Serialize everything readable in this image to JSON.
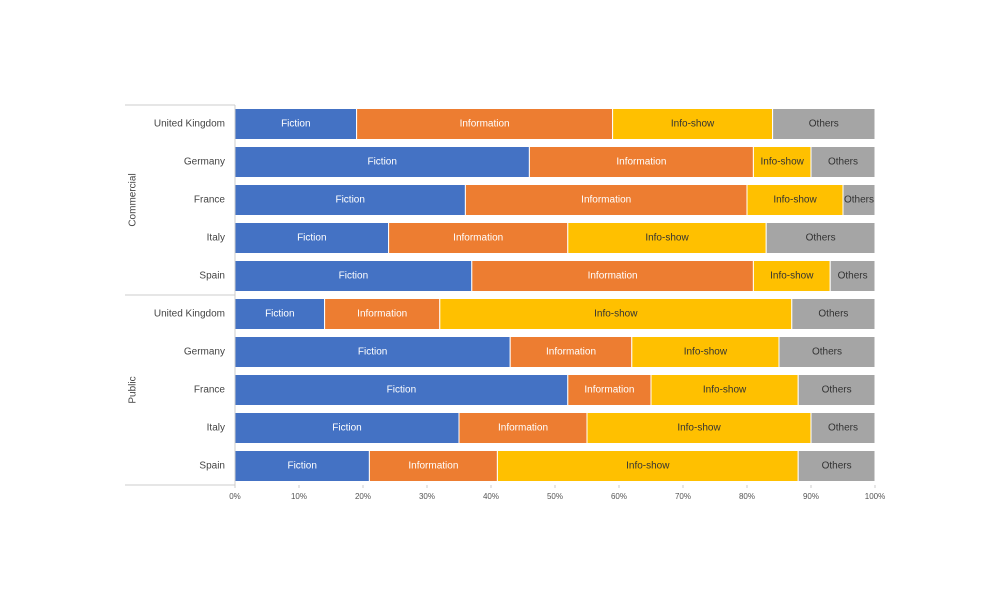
{
  "chart_data": {
    "type": "stacked-bar-horizontal",
    "groups": [
      {
        "label": "Commercial",
        "categories": [
          "United Kingdom",
          "Germany",
          "France",
          "Italy",
          "Spain"
        ]
      },
      {
        "label": "Public",
        "categories": [
          "United Kingdom",
          "Germany",
          "France",
          "Italy",
          "Spain"
        ]
      }
    ],
    "series": [
      {
        "name": "Fiction",
        "color": "#4472c4",
        "values": [
          19,
          46,
          36,
          24,
          37,
          14,
          43,
          52,
          35,
          21
        ]
      },
      {
        "name": "Information",
        "color": "#ed7d31",
        "values": [
          40,
          35,
          44,
          28,
          44,
          18,
          19,
          13,
          20,
          20
        ]
      },
      {
        "name": "Info-show",
        "color": "#ffc000",
        "values": [
          25,
          9,
          15,
          31,
          12,
          55,
          23,
          23,
          35,
          47
        ]
      },
      {
        "name": "Others",
        "color": "#a5a5a5",
        "values": [
          16,
          10,
          5,
          17,
          7,
          13,
          15,
          12,
          10,
          12
        ]
      }
    ],
    "xlim": [
      0,
      100
    ],
    "xticks": [
      {
        "value": 0,
        "label": "0%"
      },
      {
        "value": 10,
        "label": "10%"
      },
      {
        "value": 20,
        "label": "20%"
      },
      {
        "value": 30,
        "label": "30%"
      },
      {
        "value": 40,
        "label": "40%"
      },
      {
        "value": 50,
        "label": "50%"
      },
      {
        "value": 60,
        "label": "60%"
      },
      {
        "value": 70,
        "label": "70%"
      },
      {
        "value": 80,
        "label": "80%"
      },
      {
        "value": 90,
        "label": "90%"
      },
      {
        "value": 100,
        "label": "100%"
      }
    ]
  }
}
